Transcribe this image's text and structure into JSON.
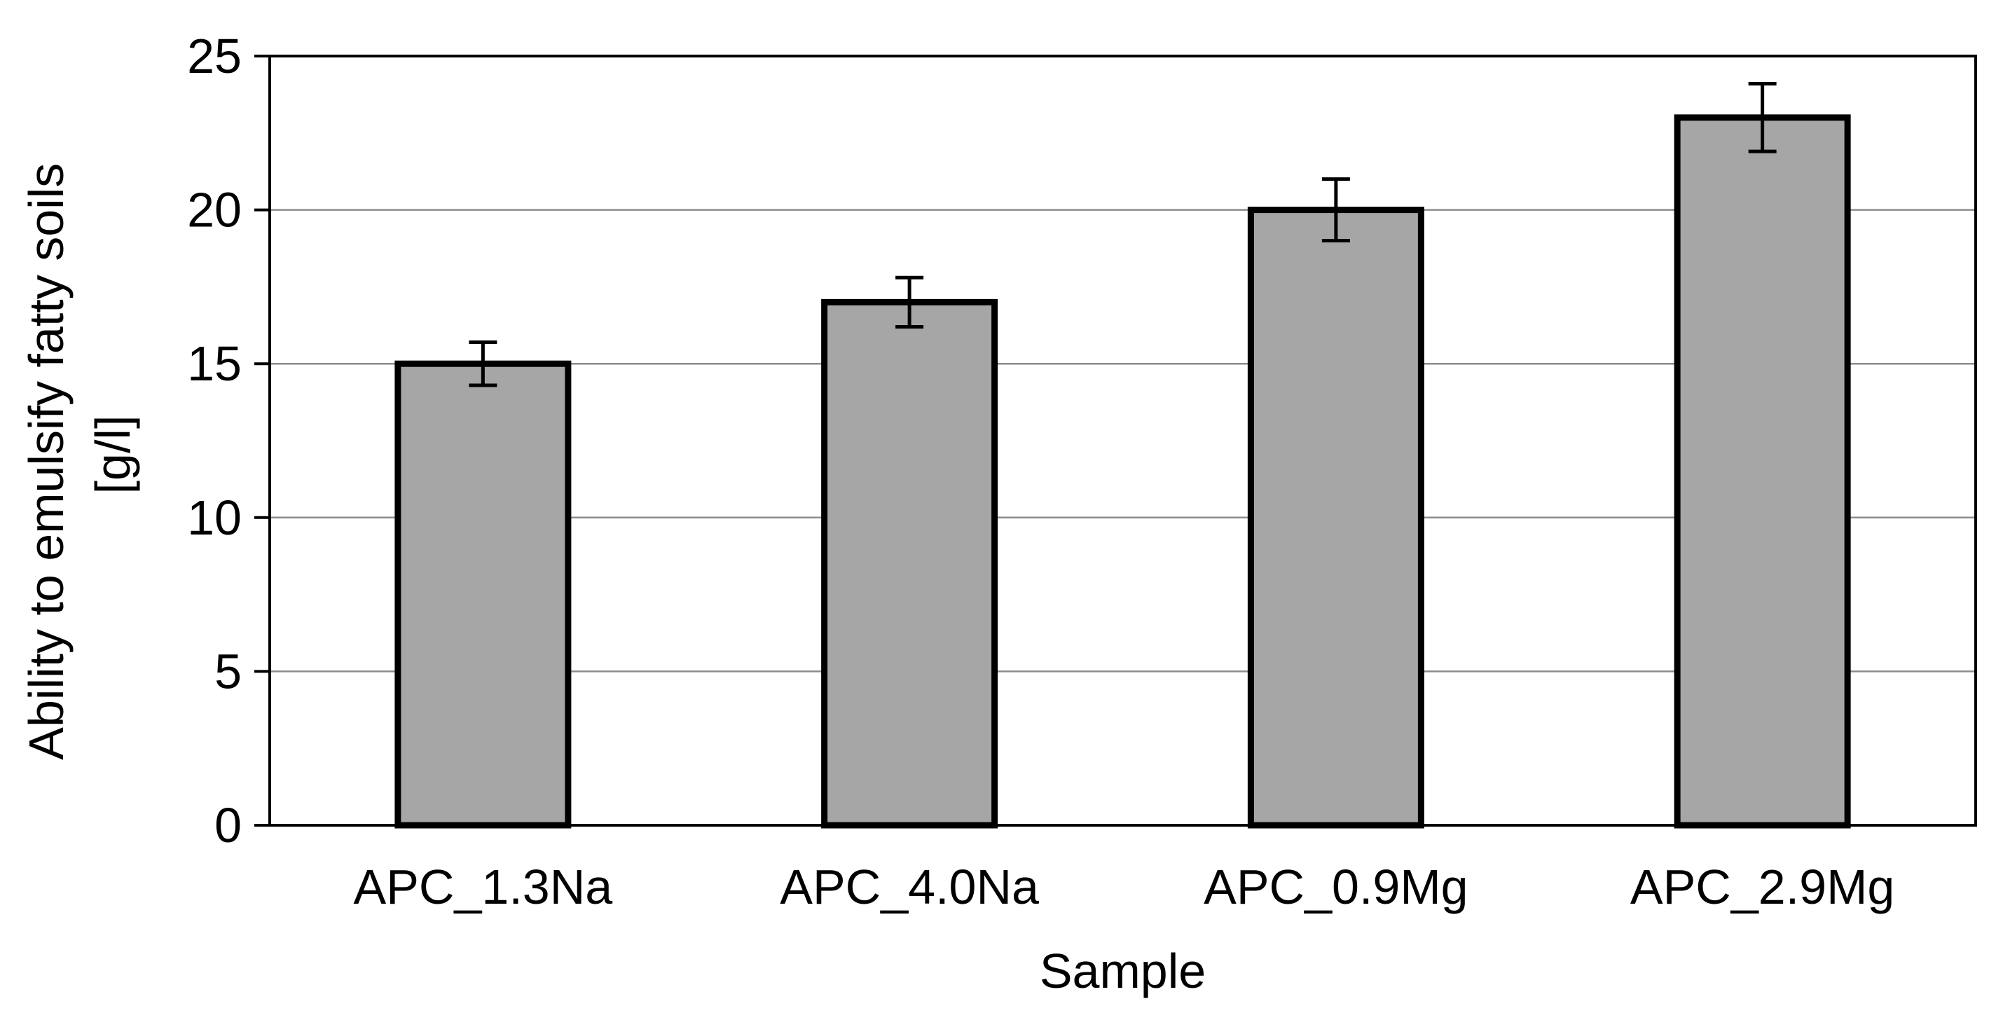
{
  "chart_data": {
    "type": "bar",
    "categories": [
      "APC_1.3Na",
      "APC_4.0Na",
      "APC_0.9Mg",
      "APC_2.9Mg"
    ],
    "values": [
      15,
      17,
      20,
      23
    ],
    "error_bars": [
      0.7,
      0.8,
      1.0,
      1.1
    ],
    "xlabel": "Sample",
    "ylabel_lines": [
      "Ability to emulsify fatty soils",
      "[g/l]"
    ],
    "ylim": [
      0,
      25
    ],
    "yticks": [
      "0",
      "5",
      "10",
      "15",
      "20",
      "25"
    ],
    "grid": true,
    "legend": "none",
    "colors": {
      "bar_fill": "#a6a6a6",
      "bar_stroke": "#000000",
      "gridline": "#8c8c8c",
      "axis": "#000000"
    }
  }
}
